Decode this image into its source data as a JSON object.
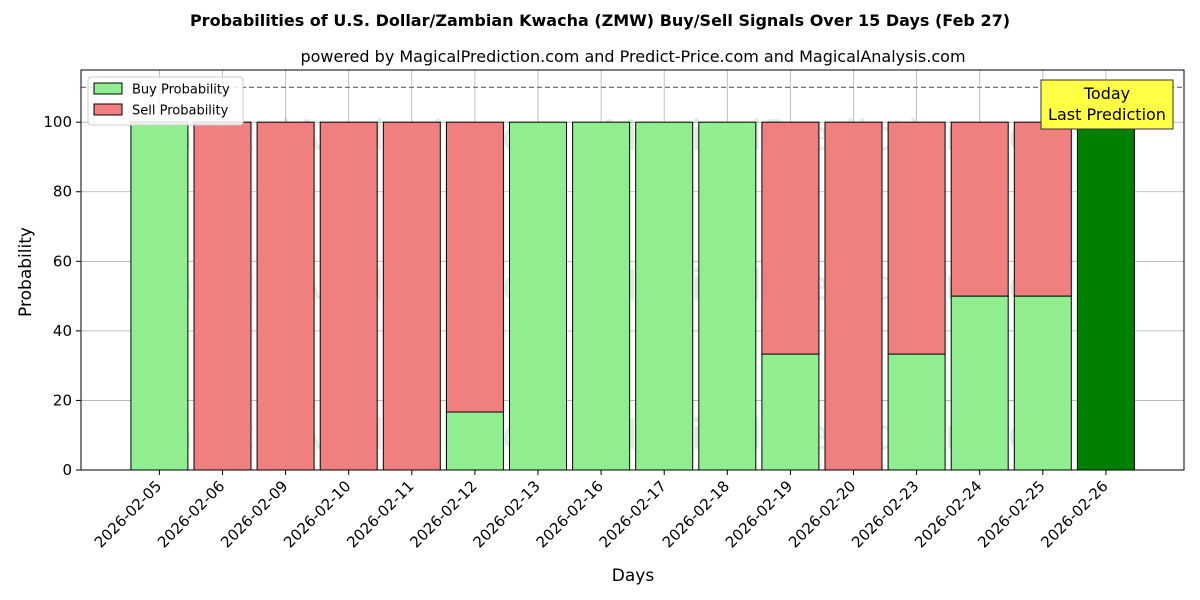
{
  "chart_data": {
    "type": "bar",
    "stacked": true,
    "title": "Probabilities of U.S. Dollar/Zambian Kwacha (ZMW) Buy/Sell Signals Over 15 Days (Feb 27)",
    "subtitle": "powered by MagicalPrediction.com and Predict-Price.com and MagicalAnalysis.com",
    "xlabel": "Days",
    "ylabel": "Probability",
    "ylim": [
      0,
      115
    ],
    "yticks": [
      0,
      20,
      40,
      60,
      80,
      100
    ],
    "grid": true,
    "legend_position": "top-left",
    "reference_line": 110,
    "categories": [
      "2026-02-05",
      "2026-02-06",
      "2026-02-09",
      "2026-02-10",
      "2026-02-11",
      "2026-02-12",
      "2026-02-13",
      "2026-02-16",
      "2026-02-17",
      "2026-02-18",
      "2026-02-19",
      "2026-02-20",
      "2026-02-23",
      "2026-02-24",
      "2026-02-25",
      "2026-02-26"
    ],
    "series": [
      {
        "name": "Buy Probability",
        "color": "#90ee90",
        "values": [
          100,
          0,
          0,
          0,
          0,
          16.67,
          100,
          100,
          100,
          100,
          33.33,
          0,
          33.33,
          50,
          50,
          100
        ]
      },
      {
        "name": "Sell Probability",
        "color": "#f08080",
        "values": [
          0,
          100,
          100,
          100,
          100,
          83.33,
          0,
          0,
          0,
          0,
          66.67,
          100,
          66.67,
          50,
          50,
          0
        ]
      }
    ],
    "highlight": {
      "category": "2026-02-26",
      "color": "#008000",
      "label_line1": "Today",
      "label_line2": "Last Prediction",
      "box_color": "#ffff44"
    },
    "watermarks": [
      "MagicalAnalysis.com",
      "MagicalPrediction.com"
    ]
  }
}
